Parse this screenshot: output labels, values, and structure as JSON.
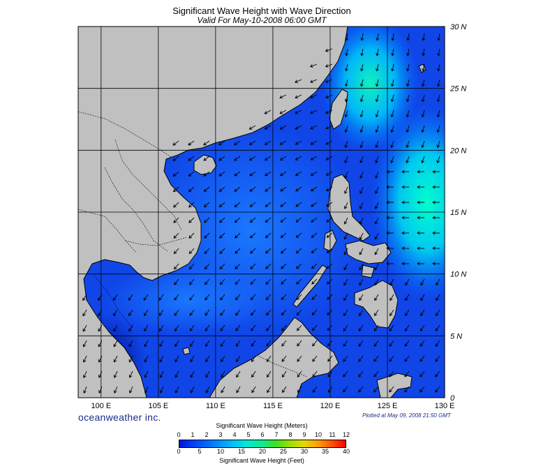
{
  "title": "Significant Wave Height with Wave Direction",
  "subtitle": "Valid For May-10-2008 06:00 GMT",
  "brand": "oceanweather inc.",
  "plotted": "Plotted at May 09, 2008 21:50 GMT",
  "map": {
    "lon_min": 98,
    "lon_max": 130,
    "lat_min": 0,
    "lat_max": 30,
    "lon_ticks": [
      "100 E",
      "105 E",
      "110 E",
      "115 E",
      "120 E",
      "125 E",
      "130 E"
    ],
    "lat_ticks": [
      "0",
      "5 N",
      "10 N",
      "15 N",
      "20 N",
      "25 N",
      "30 N"
    ],
    "land_color": "#c0c0c0",
    "ocean_low": "#0a1ee0",
    "ocean_mid": "#0070ff",
    "ocean_high": "#00f0d8"
  },
  "colorbar": {
    "label_meters": "Significant Wave Height (Meters)",
    "label_feet": "Significant Wave Height (Feet)",
    "meters_ticks": [
      "0",
      "1",
      "2",
      "3",
      "4",
      "5",
      "6",
      "7",
      "8",
      "9",
      "10",
      "11",
      "12"
    ],
    "feet_ticks": [
      "0",
      "5",
      "10",
      "15",
      "20",
      "25",
      "30",
      "35",
      "40"
    ],
    "colors": [
      "#0016e0",
      "#0088ff",
      "#00e8d8",
      "#40e020",
      "#e8d800",
      "#ff9a00",
      "#ff0000"
    ]
  }
}
